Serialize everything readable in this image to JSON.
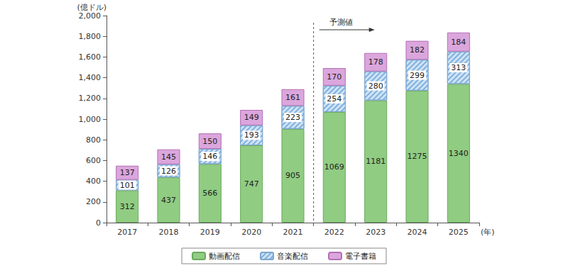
{
  "chart_data": {
    "type": "bar",
    "stacked": true,
    "data_labels": true,
    "grid": false,
    "legend": "bottom",
    "y_label": "(億ドル)",
    "x_label": "(年)",
    "annotations": [
      {
        "text": "予測値",
        "category": "2022"
      }
    ],
    "categories": [
      "2017",
      "2018",
      "2019",
      "2020",
      "2021",
      "2022",
      "2023",
      "2024",
      "2025"
    ],
    "series": [
      {
        "name": "動画配信",
        "color": "#90cc82",
        "values": [
          312,
          437,
          566,
          747,
          905,
          1069,
          1181,
          1275,
          1340
        ]
      },
      {
        "name": "音楽配信",
        "color": "#cfe3f5",
        "values": [
          101,
          126,
          146,
          193,
          223,
          254,
          280,
          299,
          313
        ]
      },
      {
        "name": "電子書籍",
        "color": "#dba6dc",
        "values": [
          137,
          145,
          150,
          149,
          161,
          170,
          178,
          182,
          184
        ]
      }
    ],
    "ylim": [
      0,
      2000
    ],
    "yticks": [
      0,
      200,
      400,
      600,
      800,
      {
        "value": 1000,
        "label": "1,000"
      },
      {
        "value": 1200,
        "label": "1,200"
      },
      {
        "value": 1400,
        "label": "1,400"
      },
      {
        "value": 1600,
        "label": "1,600"
      },
      {
        "value": 1800,
        "label": "1,800"
      },
      {
        "value": 2000,
        "label": "2,000"
      }
    ]
  }
}
